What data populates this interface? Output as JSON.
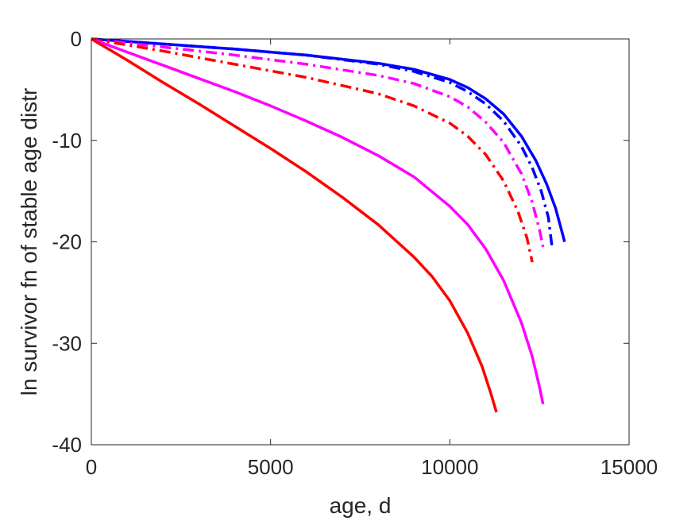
{
  "chart_data": {
    "type": "line",
    "title": "",
    "xlabel": "age, d",
    "ylabel": "ln survivor fn of stable age distr",
    "xlim": [
      0,
      15000
    ],
    "ylim": [
      -40,
      0
    ],
    "xticks": [
      0,
      5000,
      10000,
      15000
    ],
    "yticks": [
      0,
      -10,
      -20,
      -30,
      -40
    ],
    "xtick_labels": [
      "0",
      "5000",
      "10000",
      "15000"
    ],
    "ytick_labels": [
      "0",
      "-10",
      "-20",
      "-30",
      "-40"
    ],
    "grid": false,
    "legend": "none",
    "series": [
      {
        "color": "#0000ff",
        "style": "solid",
        "x": [
          0,
          2000,
          4000,
          6000,
          8000,
          9000,
          10000,
          10500,
          11000,
          11500,
          12000,
          12400,
          12700,
          12950,
          13150,
          13200
        ],
        "y": [
          0,
          -0.5,
          -1.0,
          -1.6,
          -2.4,
          -3.0,
          -4.0,
          -4.8,
          -5.9,
          -7.4,
          -9.6,
          -12.0,
          -14.3,
          -16.7,
          -19.3,
          -20.0
        ]
      },
      {
        "color": "#0000ff",
        "style": "dashdot",
        "x": [
          0,
          2000,
          4000,
          6000,
          8000,
          9000,
          10000,
          10500,
          11000,
          11500,
          12000,
          12300,
          12550,
          12750,
          12850
        ],
        "y": [
          0,
          -0.5,
          -1.0,
          -1.6,
          -2.5,
          -3.2,
          -4.3,
          -5.2,
          -6.4,
          -8.1,
          -10.6,
          -12.7,
          -15.0,
          -17.6,
          -20.5
        ]
      },
      {
        "color": "#ff00ff",
        "style": "dashdot",
        "x": [
          0,
          2000,
          4000,
          6000,
          8000,
          9000,
          10000,
          10500,
          11000,
          11500,
          12000,
          12300,
          12500,
          12600
        ],
        "y": [
          0,
          -0.8,
          -1.6,
          -2.5,
          -3.6,
          -4.4,
          -5.7,
          -6.7,
          -8.2,
          -10.2,
          -13.3,
          -16.1,
          -18.8,
          -20.5
        ]
      },
      {
        "color": "#ff0000",
        "style": "dashdot",
        "x": [
          0,
          2000,
          4000,
          6000,
          8000,
          9000,
          10000,
          10500,
          11000,
          11500,
          11900,
          12150,
          12300
        ],
        "y": [
          0,
          -1.2,
          -2.5,
          -3.8,
          -5.4,
          -6.6,
          -8.3,
          -9.6,
          -11.4,
          -14.0,
          -17.0,
          -19.6,
          -22.0
        ]
      },
      {
        "color": "#ff00ff",
        "style": "solid",
        "x": [
          0,
          1000,
          2000,
          3000,
          4000,
          5000,
          6000,
          7000,
          8000,
          9000,
          10000,
          10500,
          11000,
          11500,
          12000,
          12300,
          12500,
          12600
        ],
        "y": [
          0,
          -1.3,
          -2.6,
          -3.9,
          -5.2,
          -6.6,
          -8.1,
          -9.7,
          -11.5,
          -13.6,
          -16.5,
          -18.3,
          -20.7,
          -23.8,
          -28.0,
          -31.3,
          -34.3,
          -36.0
        ]
      },
      {
        "color": "#ff0000",
        "style": "solid",
        "x": [
          0,
          1000,
          2000,
          3000,
          4000,
          5000,
          6000,
          7000,
          8000,
          9000,
          9500,
          10000,
          10500,
          10900,
          11150,
          11300
        ],
        "y": [
          0,
          -2.1,
          -4.3,
          -6.4,
          -8.6,
          -10.8,
          -13.1,
          -15.6,
          -18.3,
          -21.5,
          -23.4,
          -25.8,
          -29.0,
          -32.3,
          -35.0,
          -36.8
        ]
      }
    ]
  }
}
